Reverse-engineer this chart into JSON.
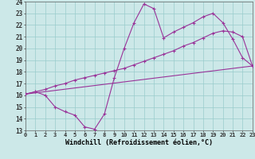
{
  "xlabel": "Windchill (Refroidissement éolien,°C)",
  "background_color": "#cce8e8",
  "line_color": "#993399",
  "grid_color": "#99cccc",
  "xmin": 0,
  "xmax": 23,
  "ymin": 13,
  "ymax": 24,
  "line1_x": [
    0,
    1,
    2,
    3,
    4,
    5,
    6,
    7,
    8,
    9,
    10,
    11,
    12,
    13,
    14,
    15,
    16,
    17,
    18,
    19,
    20,
    21,
    22,
    23
  ],
  "line1_y": [
    16.1,
    16.3,
    16.0,
    15.0,
    14.6,
    14.3,
    13.3,
    13.1,
    14.4,
    17.5,
    20.0,
    22.2,
    23.8,
    23.4,
    20.9,
    21.4,
    21.8,
    22.2,
    22.7,
    23.0,
    22.2,
    20.8,
    19.2,
    18.5
  ],
  "line2_x": [
    0,
    1,
    2,
    3,
    4,
    5,
    6,
    7,
    8,
    9,
    10,
    11,
    12,
    13,
    14,
    15,
    16,
    17,
    18,
    19,
    20,
    21,
    22,
    23
  ],
  "line2_y": [
    16.1,
    16.3,
    16.5,
    16.8,
    17.0,
    17.3,
    17.5,
    17.7,
    17.9,
    18.1,
    18.3,
    18.6,
    18.9,
    19.2,
    19.5,
    19.8,
    20.2,
    20.5,
    20.9,
    21.3,
    21.5,
    21.4,
    21.0,
    18.5
  ],
  "line3_x": [
    0,
    23
  ],
  "line3_y": [
    16.1,
    18.5
  ],
  "xtick_fontsize": 5.0,
  "ytick_fontsize": 5.5,
  "xlabel_fontsize": 6.0
}
